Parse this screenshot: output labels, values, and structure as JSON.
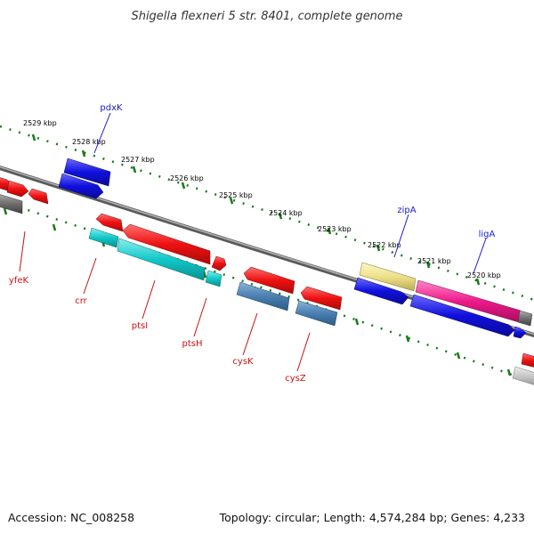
{
  "title": "Shigella flexneri 5 str. 8401, complete genome",
  "accession": "Accession: NC_008258",
  "topology": "Topology: circular; Length: 4,574,284 bp; Genes: 4,233",
  "scale_labels": [
    "2529 kbp",
    "2528 kbp",
    "2527 kbp",
    "2526 kbp",
    "2525 kbp",
    "2524 kbp",
    "2523 kbp",
    "2522 kbp",
    "2521 kbp",
    "2520 kbp"
  ],
  "genes_top": [
    "pdxK",
    "zipA",
    "ligA"
  ],
  "genes_bottom": [
    "yfeK",
    "crr",
    "ptsI",
    "ptsH",
    "cysK",
    "cysZ"
  ],
  "colors": {
    "forward_label": "#1a1acc",
    "reverse_label": "#cc1111",
    "tick_green": "#1a7a1a",
    "backbone": "#8a8a8a",
    "blue": "#1010dd",
    "red": "#ee1111",
    "cyan": "#11c8c8",
    "steel": "#4a7fb0",
    "pink": "#ee1a8a",
    "khaki": "#eee08a",
    "gray": "#707070"
  }
}
